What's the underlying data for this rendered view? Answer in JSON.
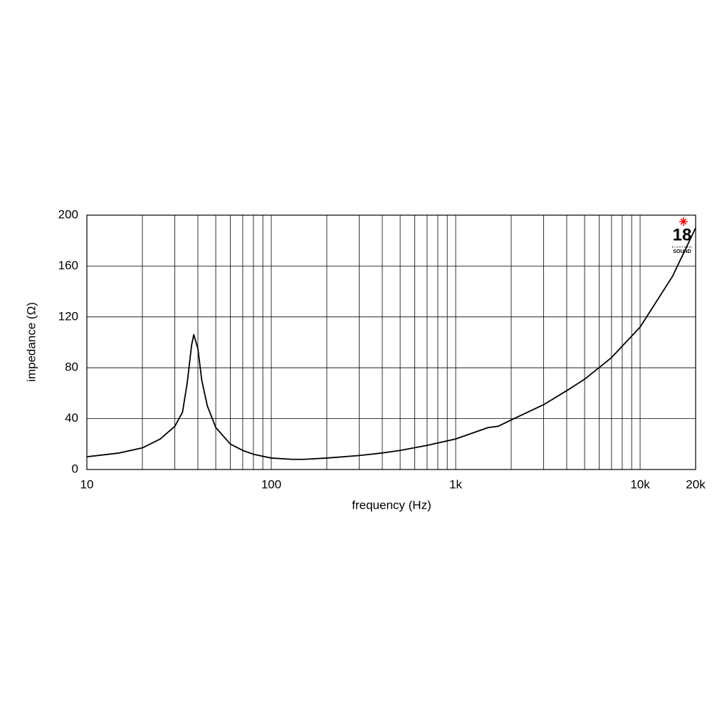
{
  "chart_data": {
    "type": "line",
    "x_label": "frequency (Hz)",
    "y_label": "impedance (Ω)",
    "x_scale": "log",
    "grid": true,
    "xlim": [
      10,
      20000
    ],
    "ylim": [
      0,
      200
    ],
    "xticks": [
      10,
      100,
      {
        "value": 1000,
        "label": "1k"
      },
      {
        "value": 10000,
        "label": "10k"
      },
      {
        "value": 20000,
        "label": "20k"
      }
    ],
    "x_minor_ticks": [
      20,
      30,
      40,
      50,
      60,
      70,
      80,
      90,
      200,
      300,
      400,
      500,
      600,
      700,
      800,
      900,
      2000,
      3000,
      4000,
      5000,
      6000,
      7000,
      8000,
      9000
    ],
    "yticks": [
      0,
      40,
      80,
      120,
      160,
      200
    ],
    "series": [
      {
        "color": "#000000",
        "x": [
          10,
          15,
          20,
          25,
          30,
          33,
          35,
          37,
          38,
          40,
          42,
          45,
          50,
          60,
          70,
          80,
          100,
          130,
          150,
          200,
          300,
          400,
          500,
          700,
          1000,
          1500,
          1700,
          2000,
          3000,
          4000,
          5000,
          7000,
          10000,
          15000,
          20000
        ],
        "values": [
          10,
          13,
          17,
          24,
          34,
          45,
          68,
          98,
          106,
          95,
          70,
          50,
          33,
          20,
          15,
          12,
          9,
          8,
          8,
          9,
          11,
          13,
          15,
          19,
          24,
          33,
          34,
          39,
          51,
          62,
          71,
          88,
          112,
          152,
          190
        ]
      }
    ],
    "logo": {
      "number": "18",
      "text": "SOUND",
      "subtext": "EIGHTEEN"
    }
  }
}
